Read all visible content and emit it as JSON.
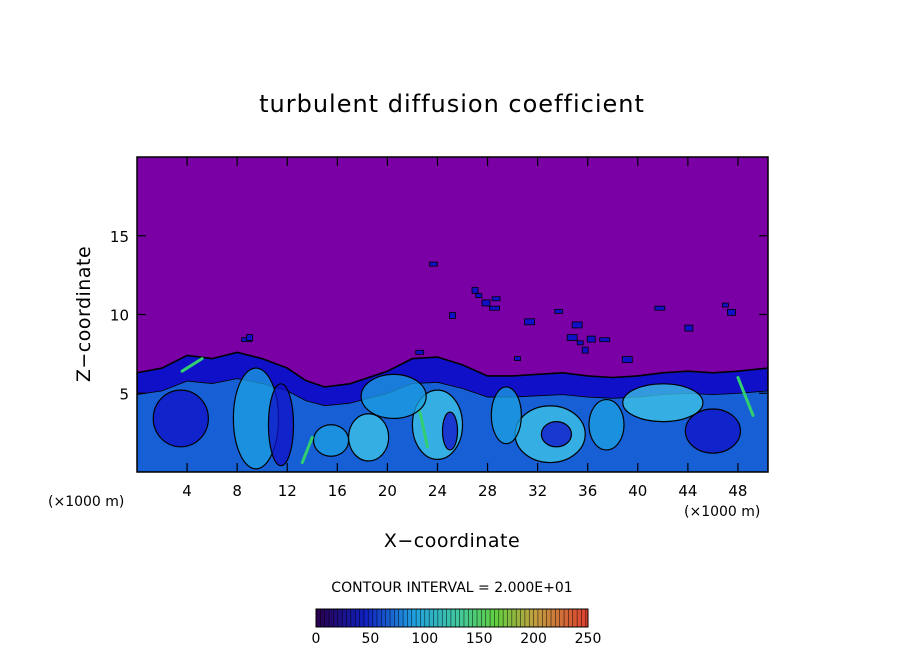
{
  "chart_data": {
    "type": "heatmap",
    "title": "turbulent diffusion coefficient",
    "xlabel": "X−coordinate",
    "ylabel": "Z−coordinate",
    "x_unit_left": "(×1000 m)",
    "x_unit_right": "(×1000 m)",
    "xlim": [
      0,
      50.4
    ],
    "ylim": [
      0,
      20
    ],
    "x_ticks": [
      4,
      8,
      12,
      16,
      20,
      24,
      28,
      32,
      36,
      40,
      44,
      48
    ],
    "y_ticks": [
      5,
      10,
      15
    ],
    "contour_interval_label": "CONTOUR INTERVAL = 2.000E+01",
    "colorbar": {
      "min": 0,
      "max": 250,
      "ticks": [
        0,
        50,
        100,
        150,
        200,
        250
      ]
    },
    "background_value": 0,
    "turbulent_layer_top": [
      [
        0,
        6.3
      ],
      [
        2,
        6.6
      ],
      [
        4,
        7.4
      ],
      [
        6,
        7.2
      ],
      [
        8,
        7.6
      ],
      [
        10,
        7.2
      ],
      [
        12,
        6.6
      ],
      [
        13.5,
        5.8
      ],
      [
        15,
        5.4
      ],
      [
        17,
        5.6
      ],
      [
        20,
        6.4
      ],
      [
        22,
        7.2
      ],
      [
        24,
        7.3
      ],
      [
        26,
        6.8
      ],
      [
        28,
        6.1
      ],
      [
        30,
        6.1
      ],
      [
        32,
        6.2
      ],
      [
        34,
        6.3
      ],
      [
        36,
        6.1
      ],
      [
        38,
        6.0
      ],
      [
        40,
        6.1
      ],
      [
        42,
        6.3
      ],
      [
        44,
        6.4
      ],
      [
        46,
        6.3
      ],
      [
        48,
        6.4
      ],
      [
        50.4,
        6.6
      ]
    ],
    "colors": {
      "background": "#7a00a6",
      "low": "#1010c8",
      "mid": "#1ea0e0",
      "high": "#40c8e8",
      "peak": "#30d070"
    }
  }
}
